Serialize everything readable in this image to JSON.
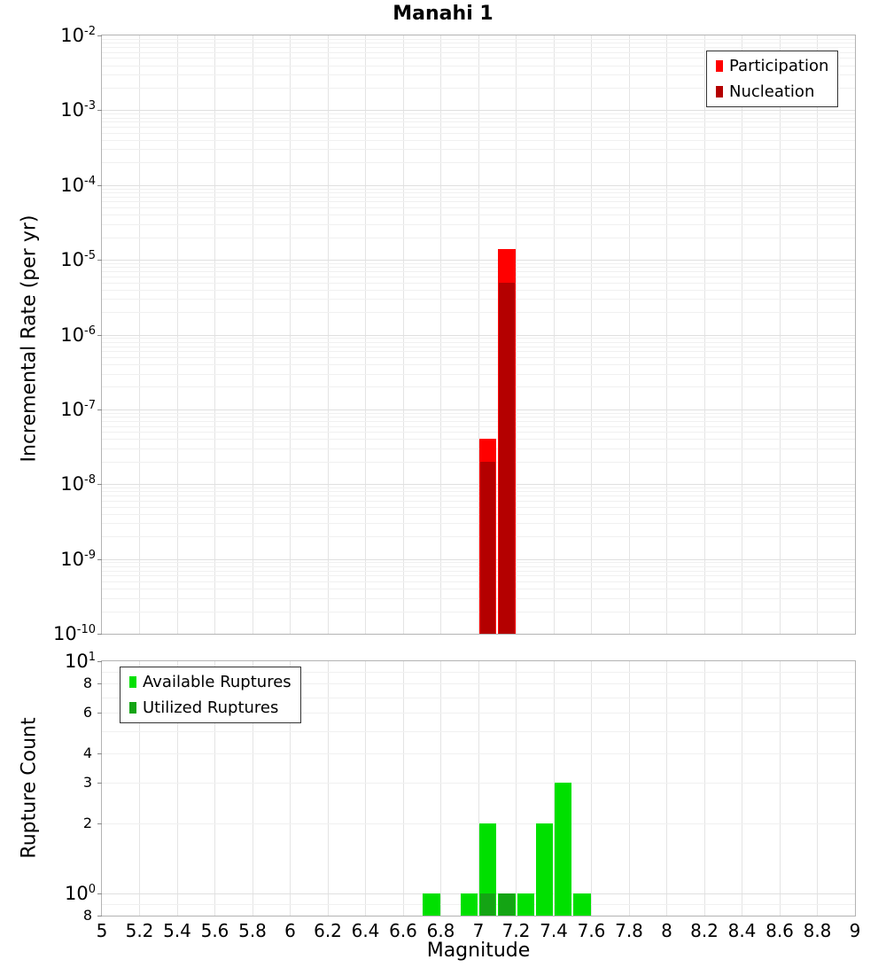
{
  "title": "Manahi 1",
  "chart_data": [
    {
      "type": "bar",
      "panel": "incremental-rate",
      "title": "Manahi 1",
      "xlabel": "",
      "ylabel": "Incremental Rate (per yr)",
      "xlim": [
        5,
        9
      ],
      "ylim": [
        1e-10,
        0.01
      ],
      "y_scale": "log",
      "grid": true,
      "legend_position": "top-right",
      "bin_width": 0.1,
      "series": [
        {
          "name": "Participation",
          "color": "#ff0000",
          "bins": [
            {
              "m": 7.0,
              "rate": 4e-08
            },
            {
              "m": 7.1,
              "rate": 1.4e-05
            }
          ]
        },
        {
          "name": "Nucleation",
          "color": "#b40000",
          "bins": [
            {
              "m": 7.0,
              "rate": 2e-08
            },
            {
              "m": 7.1,
              "rate": 5e-06
            }
          ]
        }
      ],
      "y_ticks": [
        {
          "v": 0.01,
          "base": "10",
          "sup": "-2"
        },
        {
          "v": 0.001,
          "base": "10",
          "sup": "-3"
        },
        {
          "v": 0.0001,
          "base": "10",
          "sup": "-4"
        },
        {
          "v": 1e-05,
          "base": "10",
          "sup": "-5"
        },
        {
          "v": 1e-06,
          "base": "10",
          "sup": "-6"
        },
        {
          "v": 1e-07,
          "base": "10",
          "sup": "-7"
        },
        {
          "v": 1e-08,
          "base": "10",
          "sup": "-8"
        },
        {
          "v": 1e-09,
          "base": "10",
          "sup": "-9"
        },
        {
          "v": 1e-10,
          "base": "10",
          "sup": "-10"
        }
      ]
    },
    {
      "type": "bar",
      "panel": "rupture-count",
      "xlabel": "Magnitude",
      "ylabel": "Rupture Count",
      "xlim": [
        5,
        9
      ],
      "ylim": [
        0.8,
        10
      ],
      "y_scale": "log",
      "grid": true,
      "legend_position": "top-left",
      "bin_width": 0.1,
      "series": [
        {
          "name": "Available Ruptures",
          "color": "#00e000",
          "bins": [
            {
              "m": 6.7,
              "count": 1
            },
            {
              "m": 6.9,
              "count": 1
            },
            {
              "m": 7.0,
              "count": 2
            },
            {
              "m": 7.1,
              "count": 1
            },
            {
              "m": 7.2,
              "count": 1
            },
            {
              "m": 7.3,
              "count": 2
            },
            {
              "m": 7.4,
              "count": 3
            },
            {
              "m": 7.5,
              "count": 1
            }
          ]
        },
        {
          "name": "Utilized Ruptures",
          "color": "#14a414",
          "bins": [
            {
              "m": 7.0,
              "count": 1
            },
            {
              "m": 7.1,
              "count": 1
            }
          ]
        }
      ],
      "y_ticks": [
        {
          "v": 10,
          "base": "10",
          "sup": "1"
        },
        {
          "v": 8,
          "label": "8"
        },
        {
          "v": 6,
          "label": "6"
        },
        {
          "v": 4,
          "label": "4"
        },
        {
          "v": 3,
          "label": "3"
        },
        {
          "v": 2,
          "label": "2"
        },
        {
          "v": 1,
          "base": "10",
          "sup": "0"
        },
        {
          "v": 0.8,
          "label": "8"
        }
      ],
      "x_ticks": [
        {
          "v": 5,
          "label": "5"
        },
        {
          "v": 5.2,
          "label": "5.2"
        },
        {
          "v": 5.4,
          "label": "5.4"
        },
        {
          "v": 5.6,
          "label": "5.6"
        },
        {
          "v": 5.8,
          "label": "5.8"
        },
        {
          "v": 6,
          "label": "6"
        },
        {
          "v": 6.2,
          "label": "6.2"
        },
        {
          "v": 6.4,
          "label": "6.4"
        },
        {
          "v": 6.6,
          "label": "6.6"
        },
        {
          "v": 6.8,
          "label": "6.8"
        },
        {
          "v": 7,
          "label": "7"
        },
        {
          "v": 7.2,
          "label": "7.2"
        },
        {
          "v": 7.4,
          "label": "7.4"
        },
        {
          "v": 7.6,
          "label": "7.6"
        },
        {
          "v": 7.8,
          "label": "7.8"
        },
        {
          "v": 8,
          "label": "8"
        },
        {
          "v": 8.2,
          "label": "8.2"
        },
        {
          "v": 8.4,
          "label": "8.4"
        },
        {
          "v": 8.6,
          "label": "8.6"
        },
        {
          "v": 8.8,
          "label": "8.8"
        },
        {
          "v": 9,
          "label": "9"
        }
      ]
    }
  ]
}
